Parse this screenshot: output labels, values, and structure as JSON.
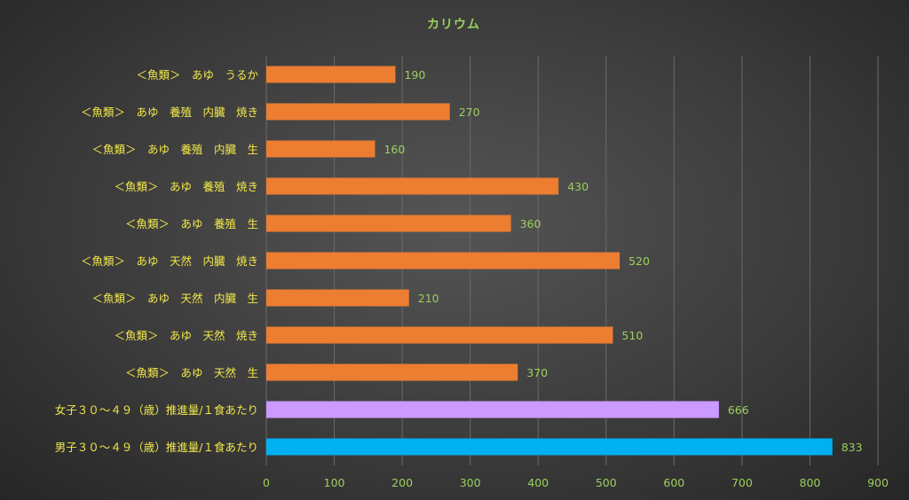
{
  "chart_data": {
    "type": "bar",
    "orientation": "horizontal",
    "title": "カリウム",
    "categories": [
      "＜魚類＞　あゆ　うるか",
      "＜魚類＞　あゆ　養殖　内臓　焼き",
      "＜魚類＞　あゆ　養殖　内臓　生",
      "＜魚類＞　あゆ　養殖　焼き",
      "＜魚類＞　あゆ　養殖　生",
      "＜魚類＞　あゆ　天然　内臓　焼き",
      "＜魚類＞　あゆ　天然　内臓　生",
      "＜魚類＞　あゆ　天然　焼き",
      "＜魚類＞　あゆ　天然　生",
      "女子３０～４９（歳）推進量/１食あたり",
      "男子３０～４９（歳）推進量/１食あたり"
    ],
    "values": [
      190,
      270,
      160,
      430,
      360,
      520,
      210,
      510,
      370,
      666,
      833
    ],
    "bar_colors": [
      "#ed7d31",
      "#ed7d31",
      "#ed7d31",
      "#ed7d31",
      "#ed7d31",
      "#ed7d31",
      "#ed7d31",
      "#ed7d31",
      "#ed7d31",
      "#cc99ff",
      "#00b0f0"
    ],
    "xlim": [
      0,
      900
    ],
    "x_ticks": [
      0,
      100,
      200,
      300,
      400,
      500,
      600,
      700,
      800,
      900
    ],
    "grid": "vertical",
    "legend": "none"
  }
}
